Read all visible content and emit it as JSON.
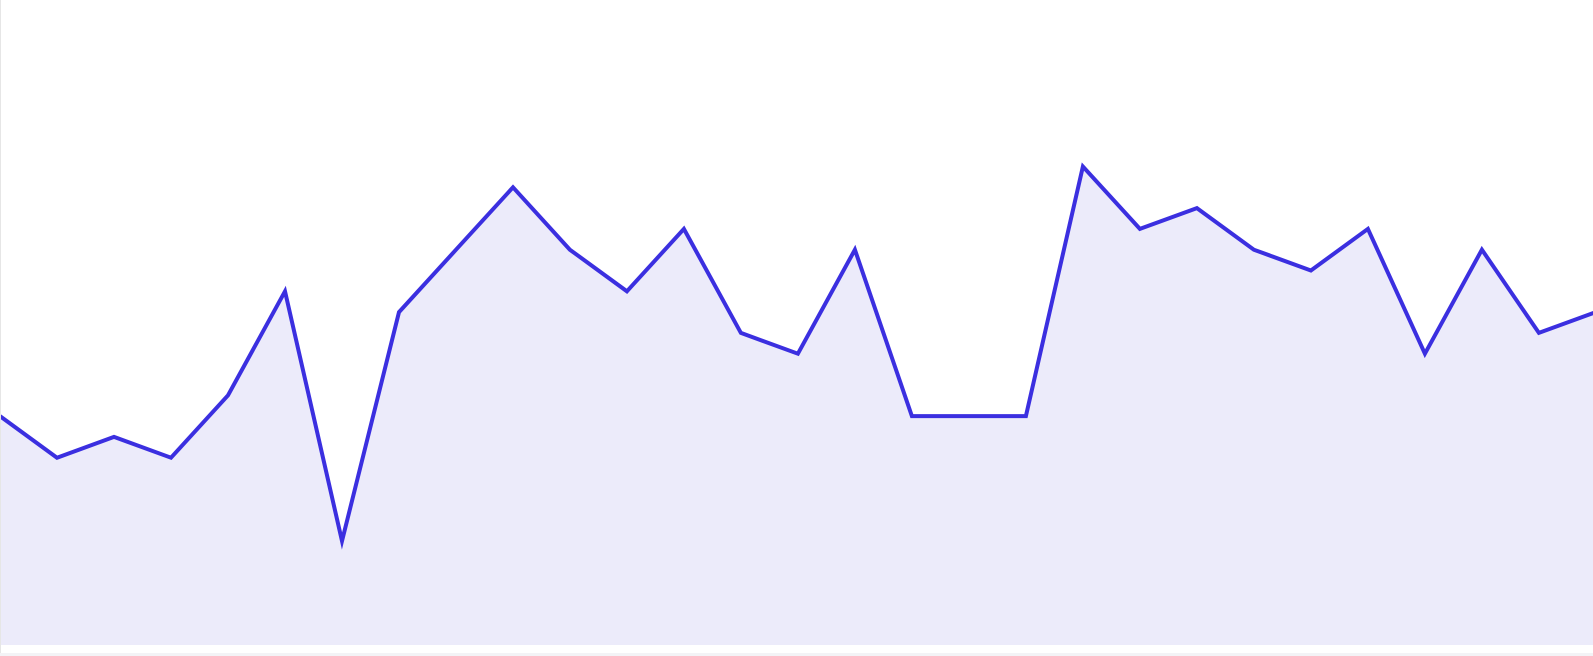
{
  "chart_data": {
    "type": "area",
    "x": [
      0,
      1,
      2,
      3,
      4,
      5,
      6,
      7,
      8,
      9,
      10,
      11,
      12,
      13,
      14,
      15,
      16,
      17,
      18,
      19,
      20,
      21,
      22,
      23,
      24,
      25,
      26,
      27,
      28
    ],
    "series": [
      {
        "values": [
          10,
          8,
          9,
          8,
          11,
          16,
          4,
          15,
          18,
          21,
          18,
          16,
          19,
          14,
          13,
          18,
          10,
          10,
          10,
          22,
          19,
          20,
          18,
          17,
          19,
          13,
          18,
          14,
          15
        ]
      }
    ],
    "ylim": [
      -1,
      30
    ],
    "grid": false,
    "colors": {
      "line": "#3b2fe0",
      "fill": "#ecebfa"
    }
  }
}
